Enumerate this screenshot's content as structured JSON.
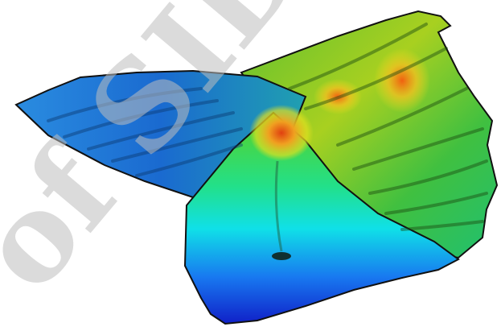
{
  "watermark": "of SID"
}
